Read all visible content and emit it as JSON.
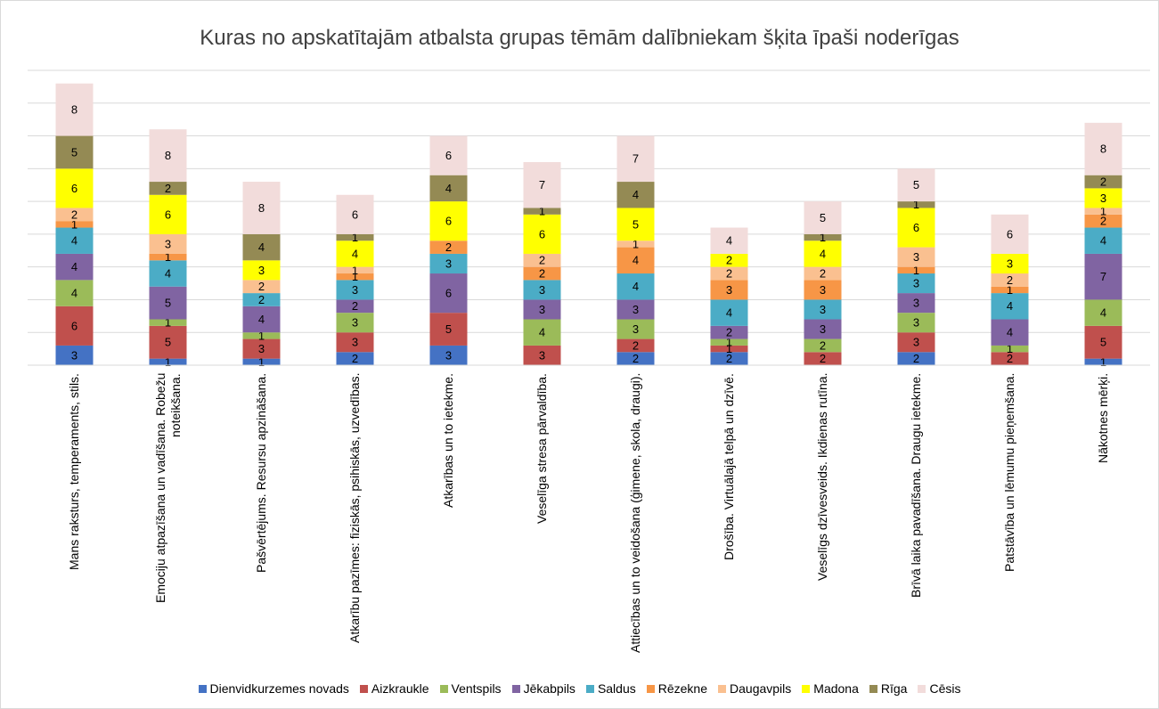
{
  "chart_data": {
    "type": "stacked_bar",
    "title": "Kuras no apskatītajām atbalsta grupas tēmām dalībniekam šķita īpaši noderīgas",
    "categories": [
      "Mans raksturs, temperaments, stils.",
      "Emociju atpazīšana un vadīšana. Robežu noteikšana.",
      "Pašvērtējums. Resursu apzināšana.",
      "Atkarību pazīmes: fiziskās, psihiskās, uzvedības.",
      "Atkarības un to ietekme.",
      "Veselīga stresa pārvaldība.",
      "Attiecības un to veidošana (ģimene, skola, draugi).",
      "Drošība. Virtuālajā telpā un dzīvē.",
      "Veselīgs dzīvesveids. Ikdienas rutīna.",
      "Brīvā laika pavadīšana. Draugu ietekme.",
      "Patstāvība un lēmumu pieņemšana.",
      "Nākotnes mērķi."
    ],
    "series": [
      {
        "name": "Dienvidkurzemes novads",
        "color": "#4472c4",
        "values": [
          3,
          1,
          1,
          2,
          3,
          null,
          2,
          2,
          null,
          2,
          null,
          1
        ]
      },
      {
        "name": "Aizkraukle",
        "color": "#c0504d",
        "values": [
          6,
          5,
          3,
          3,
          5,
          3,
          2,
          1,
          2,
          3,
          2,
          5
        ]
      },
      {
        "name": "Ventspils",
        "color": "#9bbb59",
        "values": [
          4,
          1,
          1,
          3,
          null,
          4,
          3,
          1,
          2,
          3,
          1,
          4
        ]
      },
      {
        "name": "Jēkabpils",
        "color": "#8064a2",
        "values": [
          4,
          5,
          4,
          2,
          6,
          3,
          3,
          2,
          3,
          3,
          4,
          7
        ]
      },
      {
        "name": "Saldus",
        "color": "#4bacc6",
        "values": [
          4,
          4,
          2,
          3,
          3,
          3,
          4,
          4,
          3,
          3,
          4,
          4
        ]
      },
      {
        "name": "Rēzekne",
        "color": "#f79646",
        "values": [
          1,
          1,
          null,
          1,
          2,
          2,
          4,
          3,
          3,
          1,
          1,
          2
        ]
      },
      {
        "name": "Daugavpils",
        "color": "#fac090",
        "values": [
          2,
          3,
          2,
          1,
          null,
          2,
          1,
          2,
          2,
          3,
          2,
          1
        ]
      },
      {
        "name": "Madona",
        "color": "#ffff00",
        "values": [
          6,
          6,
          3,
          4,
          6,
          6,
          5,
          2,
          4,
          6,
          3,
          3
        ]
      },
      {
        "name": "Rīga",
        "color": "#948a54",
        "values": [
          5,
          2,
          4,
          1,
          4,
          1,
          4,
          null,
          1,
          1,
          null,
          2
        ]
      },
      {
        "name": "Cēsis",
        "color": "#f2dcdb",
        "values": [
          8,
          8,
          8,
          6,
          6,
          7,
          7,
          4,
          5,
          5,
          6,
          8
        ]
      }
    ],
    "ylim": [
      0,
      45
    ],
    "yticks": [
      0,
      5,
      10,
      15,
      20,
      25,
      30,
      35,
      40,
      45
    ],
    "grid": true
  }
}
